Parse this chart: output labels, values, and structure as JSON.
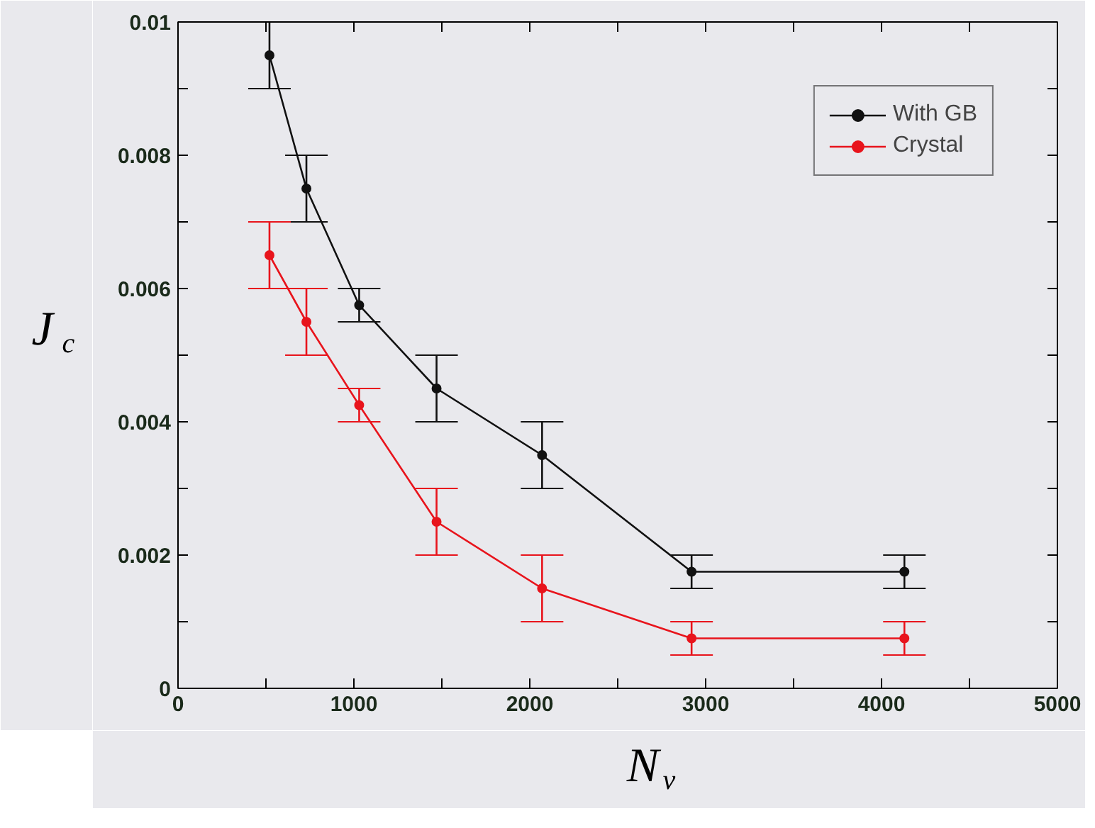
{
  "chart_data": {
    "type": "line",
    "xlabel": "N$_{v}$",
    "ylabel": "J$_{c}$",
    "x": [
      520,
      730,
      1030,
      1470,
      2070,
      2920,
      4130
    ],
    "series": [
      {
        "name": "With GB",
        "color": "#111111",
        "values": [
          0.0095,
          0.0075,
          0.00575,
          0.0045,
          0.0035,
          0.00175,
          0.00175
        ],
        "errors": [
          0.0005,
          0.0005,
          0.00025,
          0.0005,
          0.0005,
          0.00025,
          0.00025
        ]
      },
      {
        "name": "Crystal",
        "color": "#e8141c",
        "values": [
          0.0065,
          0.0055,
          0.00425,
          0.0025,
          0.0015,
          0.00075,
          0.00075
        ],
        "errors": [
          0.0005,
          0.0005,
          0.00025,
          0.0005,
          0.0005,
          0.00025,
          0.00025
        ]
      }
    ],
    "xlim": [
      0,
      5000
    ],
    "xticks": [
      0,
      {
        "value": 500,
        "label": null
      },
      1000,
      {
        "value": 1500,
        "label": null
      },
      2000,
      {
        "value": 2500,
        "label": null
      },
      3000,
      {
        "value": 3500,
        "label": null
      },
      4000,
      {
        "value": 4500,
        "label": null
      },
      5000
    ],
    "ylim": [
      0,
      0.01
    ],
    "yticks": [
      0,
      {
        "value": 0.001,
        "label": null
      },
      0.002,
      {
        "value": 0.003,
        "label": null
      },
      0.004,
      {
        "value": 0.005,
        "label": null
      },
      0.006,
      {
        "value": 0.007,
        "label": null
      },
      0.008,
      {
        "value": 0.009,
        "label": null
      },
      0.01
    ],
    "marker": "circle",
    "legend": "top right",
    "grid": false
  }
}
